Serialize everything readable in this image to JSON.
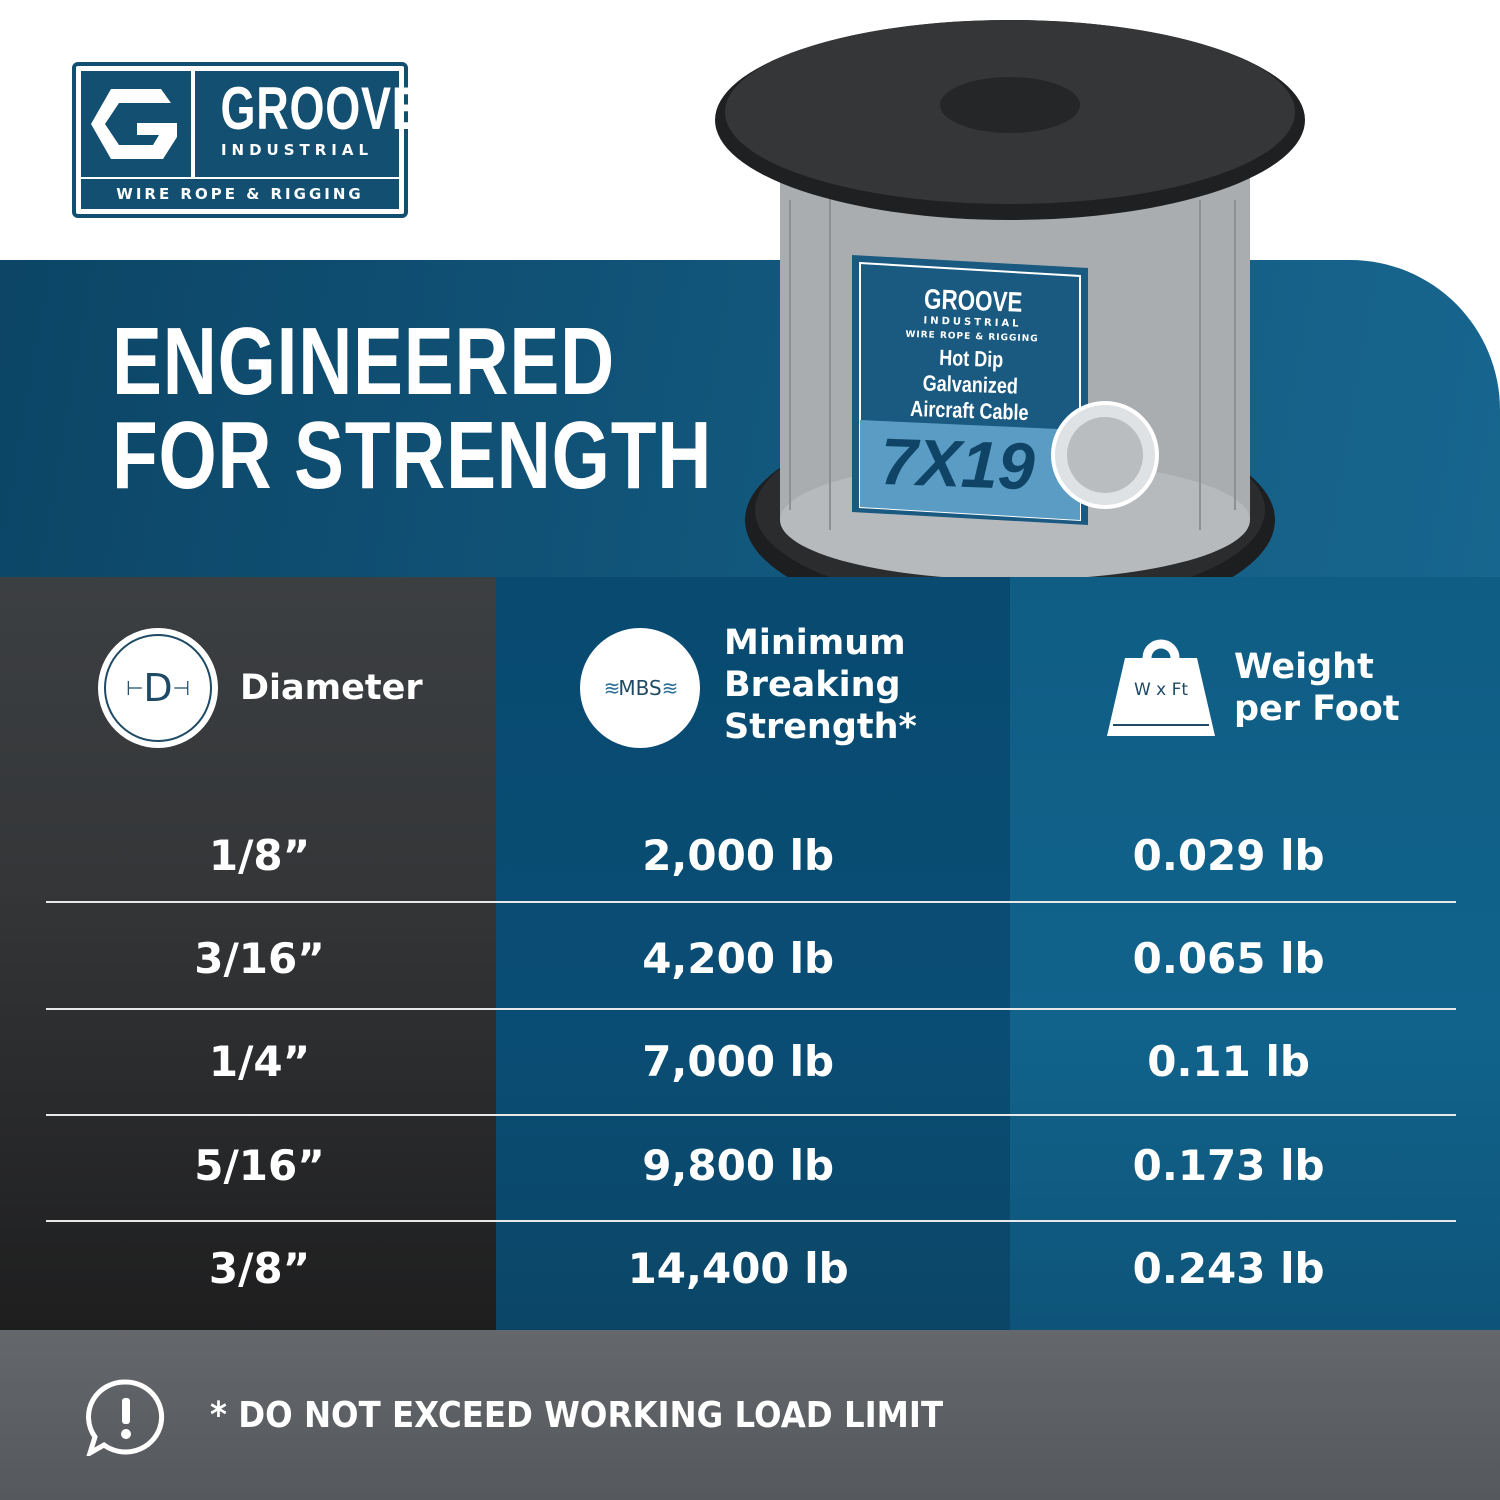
{
  "brand": {
    "name": "GROOVE",
    "sub": "INDUSTRIAL",
    "tagline": "WIRE ROPE & RIGGING"
  },
  "headline": [
    "ENGINEERED",
    "FOR STRENGTH"
  ],
  "spool_label": {
    "brand": "GROOVE",
    "sub": "INDUSTRIAL",
    "tagline": "WIRE ROPE & RIGGING",
    "product": [
      "Hot Dip Galvanized",
      "Aircraft Cable"
    ],
    "construction": "7X19"
  },
  "table": {
    "headers": [
      {
        "icon": "diameter-icon",
        "icon_text": "D",
        "label": [
          "Diameter"
        ]
      },
      {
        "icon": "mbs-rope-icon",
        "icon_text": "MBS",
        "label": [
          "Minimum",
          "Breaking",
          "Strength*"
        ]
      },
      {
        "icon": "weight-icon",
        "icon_text": "W x Ft",
        "label": [
          "Weight",
          "per Foot"
        ]
      }
    ],
    "rows": [
      [
        "1/8”",
        "2,000 lb",
        "0.029 lb"
      ],
      [
        "3/16”",
        "4,200 lb",
        "0.065 lb"
      ],
      [
        "1/4”",
        "7,000 lb",
        "0.11 lb"
      ],
      [
        "5/16”",
        "9,800 lb",
        "0.173 lb"
      ],
      [
        "3/8”",
        "14,400 lb",
        "0.243 lb"
      ]
    ]
  },
  "footer": {
    "icon": "warning-speech-icon",
    "text": "* DO NOT EXCEED WORKING LOAD LIMIT"
  },
  "colors": {
    "brand_blue": "#134f70",
    "band_blue": "#135a80",
    "dark_column": "#3a3d40",
    "footer_gray": "#5d6065"
  }
}
